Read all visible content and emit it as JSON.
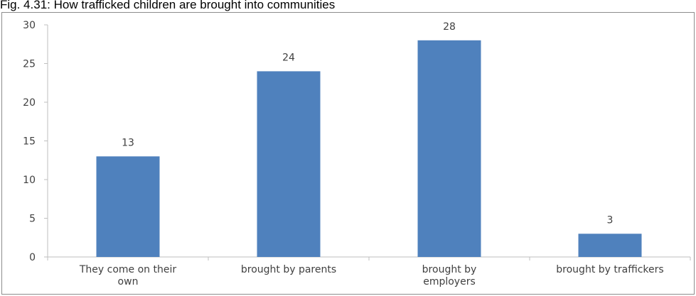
{
  "figure": {
    "caption": "Fig. 4.31: How trafficked children are brought into communities"
  },
  "colors": {
    "bar": "#4f81bd",
    "axis": "#bfbfbf",
    "text": "#404040"
  },
  "chart_data": {
    "type": "bar",
    "title": "",
    "xlabel": "",
    "ylabel": "",
    "categories": [
      [
        "They come on their",
        "own"
      ],
      [
        "brought by parents"
      ],
      [
        "brought by",
        "employers"
      ],
      [
        "brought by traffickers"
      ]
    ],
    "values": [
      13,
      24,
      28,
      3
    ],
    "data_labels": [
      "13",
      "24",
      "28",
      "3"
    ],
    "ylim": [
      0,
      30
    ],
    "yticks": [
      0,
      5,
      10,
      15,
      20,
      25,
      30
    ],
    "ytick_labels": [
      "0",
      "5",
      "10",
      "15",
      "20",
      "25",
      "30"
    ],
    "grid": false,
    "legend": "none"
  }
}
